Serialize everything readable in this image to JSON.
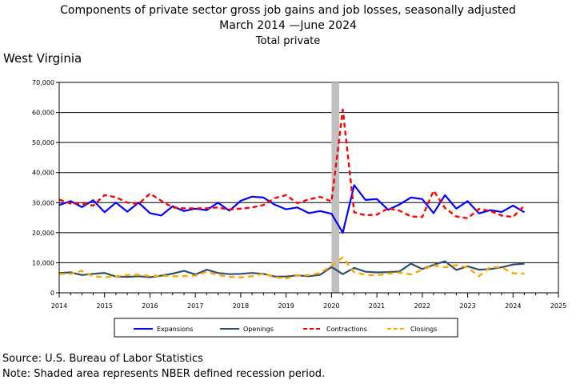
{
  "chart_data": {
    "type": "line",
    "title": "Components of private sector gross job gains and job losses, seasonally adjusted",
    "subtitle_range": "March 2014 —June 2024",
    "subtitle": "Total private",
    "region_label": "West Virginia",
    "xlabel": "",
    "ylabel": "",
    "xlim": [
      2014,
      2025
    ],
    "ylim": [
      0,
      70000
    ],
    "x_ticks": [
      "2014",
      "2015",
      "2016",
      "2017",
      "2018",
      "2019",
      "2020",
      "2021",
      "2022",
      "2023",
      "2024",
      "2025"
    ],
    "y_ticks": [
      "0",
      "10,000",
      "20,000",
      "30,000",
      "40,000",
      "50,000",
      "60,000",
      "70,000"
    ],
    "grid": true,
    "recession": {
      "start": 2020.0,
      "end": 2020.17,
      "color": "#c0c0c0"
    },
    "legend_position": "bottom",
    "x": [
      2014.0,
      2014.25,
      2014.5,
      2014.75,
      2015.0,
      2015.25,
      2015.5,
      2015.75,
      2016.0,
      2016.25,
      2016.5,
      2016.75,
      2017.0,
      2017.25,
      2017.5,
      2017.75,
      2018.0,
      2018.25,
      2018.5,
      2018.75,
      2019.0,
      2019.25,
      2019.5,
      2019.75,
      2020.0,
      2020.25,
      2020.5,
      2020.75,
      2021.0,
      2021.25,
      2021.5,
      2021.75,
      2022.0,
      2022.25,
      2022.5,
      2022.75,
      2023.0,
      2023.25,
      2023.5,
      2023.75,
      2024.0,
      2024.25
    ],
    "series": [
      {
        "name": "Expansions",
        "color": "#0000ff",
        "dash": "solid",
        "width": 2.2,
        "values": [
          29200,
          30500,
          28500,
          30800,
          26800,
          30000,
          27000,
          30000,
          26500,
          25700,
          28800,
          27200,
          28000,
          27500,
          30000,
          27300,
          30600,
          32000,
          31700,
          29300,
          27800,
          28400,
          26500,
          27200,
          26300,
          20000,
          35800,
          30900,
          31200,
          27600,
          29400,
          31700,
          31200,
          26500,
          32500,
          28000,
          30500,
          26400,
          27500,
          26900,
          29000,
          26800
        ]
      },
      {
        "name": "Openings",
        "color": "#2f4f6f",
        "dash": "solid",
        "width": 2.2,
        "values": [
          6600,
          6800,
          5900,
          6300,
          6600,
          5400,
          5300,
          5500,
          5200,
          5700,
          6400,
          7300,
          6100,
          7700,
          6600,
          6200,
          6300,
          6600,
          6300,
          5400,
          5400,
          5800,
          5500,
          6000,
          8600,
          6200,
          8300,
          7000,
          6800,
          6900,
          7100,
          9700,
          7900,
          9300,
          10500,
          7600,
          8800,
          7700,
          7900,
          8500,
          9400,
          9700
        ]
      },
      {
        "name": "Contractions",
        "color": "#ff0000",
        "dash": "6,4",
        "width": 2.4,
        "values": [
          31000,
          29700,
          29700,
          29000,
          32500,
          31800,
          30000,
          29600,
          33000,
          30600,
          28400,
          28100,
          28100,
          28100,
          28400,
          27700,
          28000,
          28400,
          29200,
          31500,
          32500,
          29800,
          31100,
          31900,
          30400,
          61000,
          26800,
          25800,
          26000,
          28100,
          27300,
          25400,
          25200,
          34000,
          28200,
          25400,
          24800,
          27900,
          27200,
          25700,
          25200,
          29000
        ]
      },
      {
        "name": "Closings",
        "color": "#ffa500",
        "dash": "7,5",
        "width": 2.4,
        "values": [
          6300,
          6300,
          7300,
          5500,
          5200,
          5500,
          5900,
          6000,
          5600,
          5700,
          5500,
          5600,
          5700,
          7000,
          5900,
          5300,
          5100,
          5500,
          6400,
          5200,
          4800,
          5700,
          5900,
          6600,
          9000,
          11800,
          6800,
          6000,
          5800,
          6400,
          6700,
          6100,
          7700,
          9100,
          8500,
          9200,
          8400,
          5500,
          8600,
          8500,
          6500,
          6400
        ]
      }
    ]
  },
  "footer": {
    "source": "Source: U.S. Bureau of Labor Statistics",
    "note": "Note: Shaded area represents NBER defined recession period."
  }
}
